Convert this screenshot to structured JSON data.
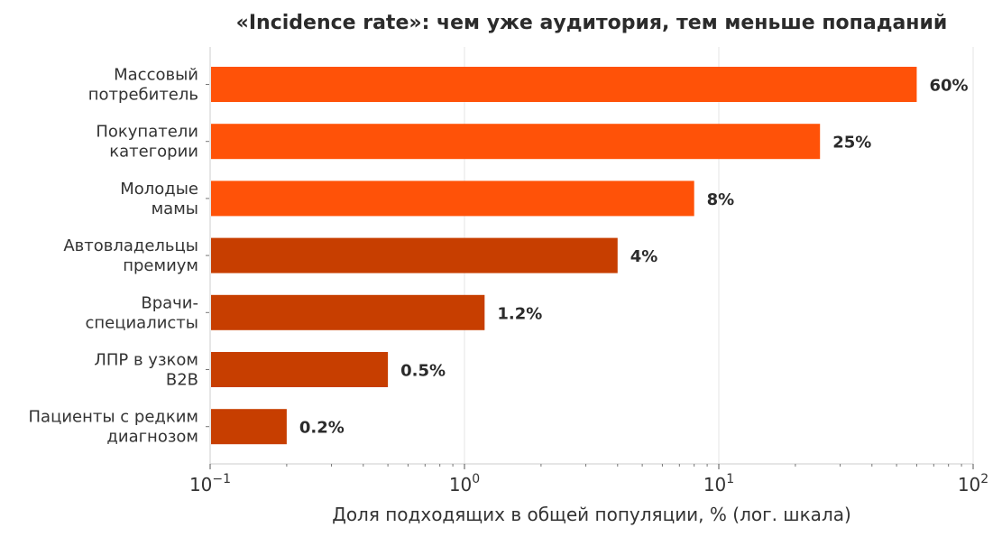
{
  "chart_data": {
    "type": "bar",
    "orientation": "horizontal",
    "title": "«Incidence rate»: чем уже аудитория, тем меньше попаданий",
    "xlabel": "Доля подходящих в общей популяции, % (лог. шкала)",
    "ylabel": "",
    "xscale": "log",
    "xlim": [
      0.1,
      100
    ],
    "grid": true,
    "x_ticks": [
      {
        "value": 0.1,
        "base": "10",
        "exp": "−1"
      },
      {
        "value": 1,
        "base": "10",
        "exp": "0"
      },
      {
        "value": 10,
        "base": "10",
        "exp": "1"
      },
      {
        "value": 100,
        "base": "10",
        "exp": "2"
      }
    ],
    "categories": [
      [
        "Массовый",
        "потребитель"
      ],
      [
        "Покупатели",
        "категории"
      ],
      [
        "Молодые",
        "мамы"
      ],
      [
        "Автовладельцы",
        "премиум"
      ],
      [
        "Врачи-",
        "специалисты"
      ],
      [
        "ЛПР в узком",
        "B2B"
      ],
      [
        "Пациенты с редким",
        "диагнозом"
      ]
    ],
    "values": [
      60,
      25,
      8,
      4,
      1.2,
      0.5,
      0.2
    ],
    "value_labels": [
      "60%",
      "25%",
      "8%",
      "4%",
      "1.2%",
      "0.5%",
      "0.2%"
    ],
    "bar_colors": [
      "#ff5208",
      "#ff5208",
      "#ff5208",
      "#c73e00",
      "#c73e00",
      "#c73e00",
      "#c73e00"
    ]
  }
}
